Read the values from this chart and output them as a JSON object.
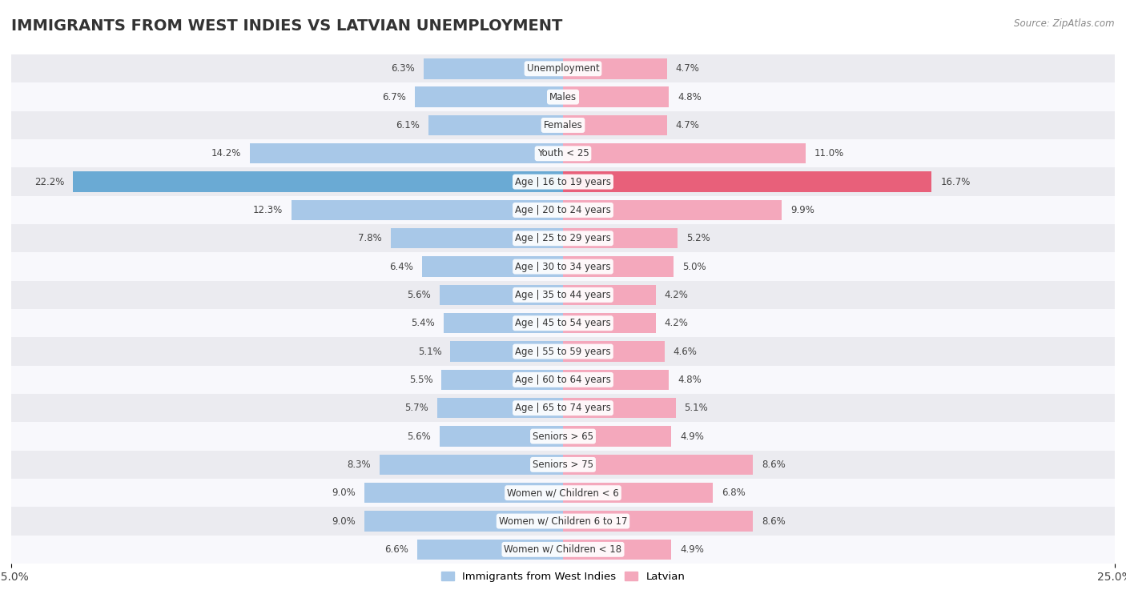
{
  "title": "IMMIGRANTS FROM WEST INDIES VS LATVIAN UNEMPLOYMENT",
  "source": "Source: ZipAtlas.com",
  "categories": [
    "Unemployment",
    "Males",
    "Females",
    "Youth < 25",
    "Age | 16 to 19 years",
    "Age | 20 to 24 years",
    "Age | 25 to 29 years",
    "Age | 30 to 34 years",
    "Age | 35 to 44 years",
    "Age | 45 to 54 years",
    "Age | 55 to 59 years",
    "Age | 60 to 64 years",
    "Age | 65 to 74 years",
    "Seniors > 65",
    "Seniors > 75",
    "Women w/ Children < 6",
    "Women w/ Children 6 to 17",
    "Women w/ Children < 18"
  ],
  "west_indies": [
    6.3,
    6.7,
    6.1,
    14.2,
    22.2,
    12.3,
    7.8,
    6.4,
    5.6,
    5.4,
    5.1,
    5.5,
    5.7,
    5.6,
    8.3,
    9.0,
    9.0,
    6.6
  ],
  "latvian": [
    4.7,
    4.8,
    4.7,
    11.0,
    16.7,
    9.9,
    5.2,
    5.0,
    4.2,
    4.2,
    4.6,
    4.8,
    5.1,
    4.9,
    8.6,
    6.8,
    8.6,
    4.9
  ],
  "west_indies_color": "#a8c8e8",
  "latvian_color": "#f4a8bc",
  "highlight_wi_color": "#6aaad4",
  "highlight_lat_color": "#e8607a",
  "row_colors": [
    "#ebebf0",
    "#f8f8fc"
  ],
  "axis_limit": 25.0,
  "bar_height": 0.72,
  "legend_label_wi": "Immigrants from West Indies",
  "legend_label_lat": "Latvian",
  "value_fontsize": 8.5,
  "label_fontsize": 8.5,
  "title_fontsize": 14
}
